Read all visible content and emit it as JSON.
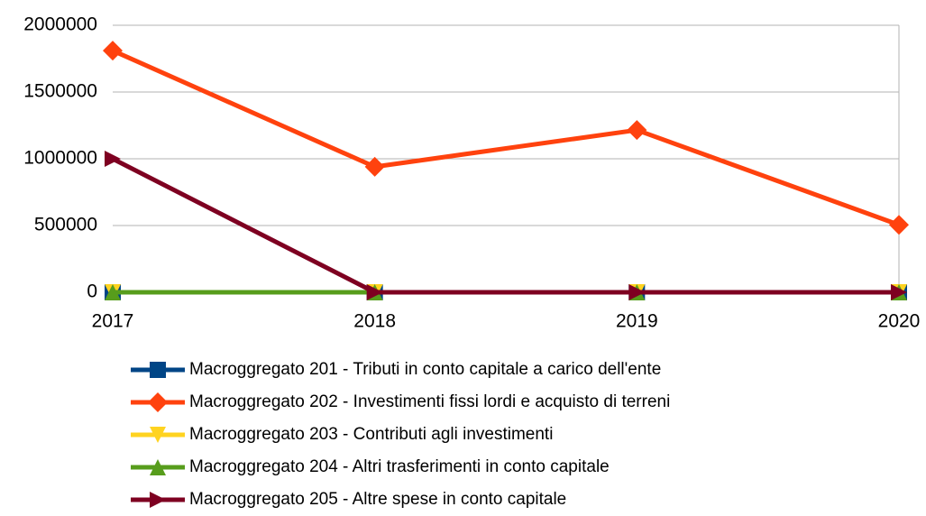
{
  "chart_data": {
    "type": "line",
    "categories": [
      "2017",
      "2018",
      "2019",
      "2020"
    ],
    "series": [
      {
        "name": "Macroggregato 201 - Tributi in conto capitale a carico dell'ente",
        "color": "#004586",
        "marker": "square",
        "values": [
          0,
          0,
          0,
          0
        ]
      },
      {
        "name": "Macroggregato 202 - Investimenti fissi lordi e acquisto di terreni",
        "color": "#ff420e",
        "marker": "diamond",
        "values": [
          1810000,
          940000,
          1215000,
          505000
        ]
      },
      {
        "name": "Macroggregato 203 - Contributi agli investimenti",
        "color": "#ffd320",
        "marker": "triangle-down",
        "values": [
          0,
          0,
          0,
          0
        ]
      },
      {
        "name": "Macroggregato 204 - Altri trasferimenti in conto capitale",
        "color": "#579d1c",
        "marker": "triangle-up",
        "values": [
          0,
          0,
          0,
          0
        ]
      },
      {
        "name": "Macroggregato 205 - Altre spese in conto capitale",
        "color": "#7e0021",
        "marker": "triangle-right",
        "values": [
          1000000,
          0,
          0,
          0
        ]
      }
    ],
    "ylim": [
      0,
      2000000
    ],
    "yticks": [
      0,
      500000,
      1000000,
      1500000,
      2000000
    ],
    "grid": true,
    "legend": "bottom"
  }
}
